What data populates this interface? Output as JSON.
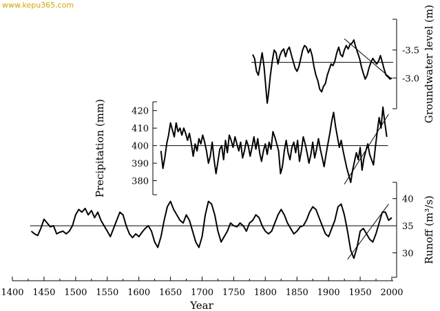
{
  "watermark": "www.kepu365.com",
  "chart_data": [
    {
      "id": "groundwater",
      "type": "line",
      "title": "",
      "ylabel": "Groundwater level (m)",
      "ylim": [
        -2.45,
        -4.05
      ],
      "yticks": [
        -3.0,
        -3.5
      ],
      "ytick_labels": [
        "-3.0",
        "-3.5"
      ],
      "axis_side": "right",
      "x": [
        1780,
        1783,
        1786,
        1789,
        1792,
        1795,
        1798,
        1801,
        1803,
        1805,
        1808,
        1811,
        1814,
        1817,
        1820,
        1823,
        1826,
        1829,
        1832,
        1835,
        1838,
        1841,
        1844,
        1847,
        1850,
        1853,
        1856,
        1859,
        1862,
        1865,
        1868,
        1871,
        1874,
        1877,
        1880,
        1883,
        1886,
        1889,
        1892,
        1895,
        1898,
        1901,
        1904,
        1907,
        1910,
        1913,
        1916,
        1919,
        1922,
        1925,
        1928,
        1931,
        1934,
        1937,
        1940,
        1943,
        1946,
        1949,
        1952,
        1955,
        1958,
        1961,
        1964,
        1967,
        1970,
        1973,
        1976,
        1979,
        1982,
        1985,
        1988,
        1991,
        1994,
        1997,
        2000
      ],
      "y": [
        -3.42,
        -3.35,
        -3.12,
        -3.05,
        -3.25,
        -3.45,
        -3.2,
        -2.8,
        -2.55,
        -2.72,
        -3.05,
        -3.3,
        -3.5,
        -3.45,
        -3.25,
        -3.4,
        -3.48,
        -3.52,
        -3.38,
        -3.5,
        -3.55,
        -3.42,
        -3.3,
        -3.18,
        -3.12,
        -3.2,
        -3.35,
        -3.5,
        -3.58,
        -3.55,
        -3.45,
        -3.52,
        -3.4,
        -3.2,
        -3.05,
        -2.95,
        -2.8,
        -2.75,
        -2.85,
        -2.9,
        -3.05,
        -3.15,
        -3.25,
        -3.22,
        -3.3,
        -3.45,
        -3.55,
        -3.42,
        -3.38,
        -3.5,
        -3.58,
        -3.52,
        -3.6,
        -3.62,
        -3.68,
        -3.55,
        -3.45,
        -3.35,
        -3.2,
        -3.08,
        -2.98,
        -3.05,
        -3.18,
        -3.28,
        -3.35,
        -3.3,
        -3.25,
        -3.3,
        -3.4,
        -3.28,
        -3.15,
        -3.05,
        -3.02,
        -2.98,
        -3.0
      ],
      "mean": -3.28,
      "trend": {
        "x": [
          1925,
          2000
        ],
        "y": [
          -3.7,
          -2.98
        ]
      }
    },
    {
      "id": "precipitation",
      "type": "line",
      "title": "",
      "ylabel": "Precipitation (mm)",
      "ylim": [
        372,
        425
      ],
      "yticks": [
        380,
        390,
        400,
        410,
        420
      ],
      "ytick_labels": [
        "380",
        "390",
        "400",
        "410",
        "420"
      ],
      "axis_side": "left",
      "x": [
        1635,
        1638,
        1641,
        1644,
        1647,
        1650,
        1653,
        1656,
        1659,
        1662,
        1665,
        1668,
        1671,
        1674,
        1677,
        1680,
        1683,
        1686,
        1689,
        1692,
        1695,
        1698,
        1701,
        1704,
        1707,
        1710,
        1713,
        1716,
        1719,
        1722,
        1725,
        1728,
        1731,
        1734,
        1737,
        1740,
        1743,
        1746,
        1749,
        1752,
        1755,
        1758,
        1761,
        1764,
        1767,
        1770,
        1773,
        1776,
        1779,
        1782,
        1785,
        1788,
        1791,
        1794,
        1797,
        1800,
        1803,
        1806,
        1809,
        1812,
        1815,
        1818,
        1821,
        1824,
        1827,
        1830,
        1833,
        1836,
        1839,
        1842,
        1845,
        1848,
        1851,
        1854,
        1857,
        1860,
        1863,
        1866,
        1869,
        1872,
        1875,
        1878,
        1881,
        1884,
        1887,
        1890,
        1893,
        1896,
        1899,
        1902,
        1905,
        1908,
        1911,
        1914,
        1917,
        1920,
        1923,
        1926,
        1929,
        1932,
        1935,
        1938,
        1941,
        1944,
        1947,
        1950,
        1953,
        1956,
        1959,
        1962,
        1965,
        1968,
        1971,
        1974,
        1977,
        1980,
        1983,
        1986,
        1989,
        1992
      ],
      "y": [
        397,
        387,
        393,
        401,
        406,
        413,
        409,
        405,
        413,
        408,
        410,
        406,
        410,
        407,
        403,
        407,
        401,
        394,
        401,
        397,
        404,
        401,
        406,
        402,
        397,
        390,
        394,
        402,
        392,
        384,
        391,
        398,
        400,
        392,
        403,
        396,
        406,
        403,
        399,
        405,
        401,
        397,
        402,
        393,
        397,
        403,
        400,
        394,
        399,
        405,
        398,
        404,
        396,
        391,
        397,
        401,
        395,
        402,
        398,
        408,
        405,
        401,
        397,
        384,
        388,
        397,
        403,
        396,
        392,
        399,
        402,
        396,
        403,
        391,
        397,
        405,
        401,
        396,
        390,
        395,
        402,
        393,
        398,
        404,
        398,
        393,
        388,
        395,
        401,
        407,
        414,
        419,
        411,
        405,
        399,
        403,
        397,
        392,
        387,
        383,
        379,
        386,
        391,
        396,
        392,
        399,
        386,
        393,
        397,
        401,
        395,
        392,
        389,
        399,
        408,
        416,
        410,
        422,
        413,
        405
      ],
      "mean": 400,
      "trend": {
        "x": [
          1925,
          1995
        ],
        "y": [
          378,
          418
        ]
      }
    },
    {
      "id": "runoff",
      "type": "line",
      "title": "",
      "ylabel": "Runoff (m³/s)",
      "ylim": [
        25.5,
        43
      ],
      "yticks": [
        30,
        35,
        40
      ],
      "ytick_labels": [
        "30",
        "35",
        "40"
      ],
      "axis_side": "right",
      "x": [
        1430,
        1435,
        1440,
        1445,
        1450,
        1455,
        1460,
        1465,
        1470,
        1475,
        1480,
        1485,
        1490,
        1495,
        1500,
        1505,
        1510,
        1515,
        1520,
        1525,
        1530,
        1535,
        1540,
        1545,
        1550,
        1555,
        1560,
        1565,
        1570,
        1575,
        1580,
        1585,
        1590,
        1595,
        1600,
        1605,
        1610,
        1615,
        1620,
        1625,
        1630,
        1635,
        1640,
        1645,
        1650,
        1655,
        1660,
        1665,
        1670,
        1675,
        1680,
        1685,
        1690,
        1695,
        1700,
        1705,
        1710,
        1715,
        1720,
        1725,
        1730,
        1735,
        1740,
        1745,
        1750,
        1755,
        1760,
        1765,
        1770,
        1775,
        1780,
        1785,
        1790,
        1795,
        1800,
        1805,
        1810,
        1815,
        1820,
        1825,
        1830,
        1835,
        1840,
        1845,
        1850,
        1855,
        1860,
        1865,
        1870,
        1875,
        1880,
        1885,
        1890,
        1895,
        1900,
        1905,
        1910,
        1915,
        1920,
        1925,
        1930,
        1935,
        1940,
        1945,
        1950,
        1955,
        1960,
        1965,
        1970,
        1975,
        1980,
        1985,
        1990,
        1995,
        2000
      ],
      "y": [
        34,
        33.5,
        33.2,
        34.5,
        36.2,
        35.5,
        34.8,
        35,
        33.5,
        33.8,
        34,
        33.5,
        34,
        35,
        37,
        38,
        37.5,
        38.2,
        37,
        37.8,
        36.5,
        37.5,
        36,
        35,
        34,
        33,
        34.5,
        36,
        37.5,
        37,
        35,
        33.5,
        32.8,
        33.5,
        33,
        33.8,
        34.5,
        35,
        34,
        32,
        31,
        33,
        36,
        38.5,
        39.5,
        38,
        37,
        36,
        35.5,
        37,
        36,
        34,
        32,
        31,
        33,
        37,
        39.5,
        39,
        37,
        34,
        32,
        33,
        34,
        35.5,
        35,
        34.8,
        35.5,
        35,
        34,
        35.5,
        36,
        37,
        36.5,
        35,
        34,
        33.5,
        34,
        35.5,
        37,
        38,
        37,
        35.5,
        34.5,
        33.5,
        34,
        34.8,
        35,
        36,
        37.5,
        38.5,
        38,
        36.5,
        35,
        33.5,
        33,
        34.5,
        36,
        38.5,
        39,
        37,
        34,
        30.5,
        29,
        31,
        34,
        34.5,
        33.5,
        32.5,
        32,
        33.5,
        35.5,
        37.5,
        37.5,
        36,
        36.5
      ],
      "mean": 35,
      "trend": {
        "x": [
          1930,
          1995
        ],
        "y": [
          28.8,
          39
        ]
      }
    }
  ],
  "x_axis": {
    "xlabel": "Year",
    "xlim": [
      1400,
      2000
    ],
    "ticks": [
      1400,
      1450,
      1500,
      1550,
      1600,
      1650,
      1700,
      1750,
      1800,
      1850,
      1900,
      1950,
      2000
    ],
    "tick_labels": [
      "1400",
      "1450",
      "1500",
      "1550",
      "1600",
      "1650",
      "1700",
      "1750",
      "1800",
      "1850",
      "1900",
      "1950",
      "2000"
    ]
  }
}
